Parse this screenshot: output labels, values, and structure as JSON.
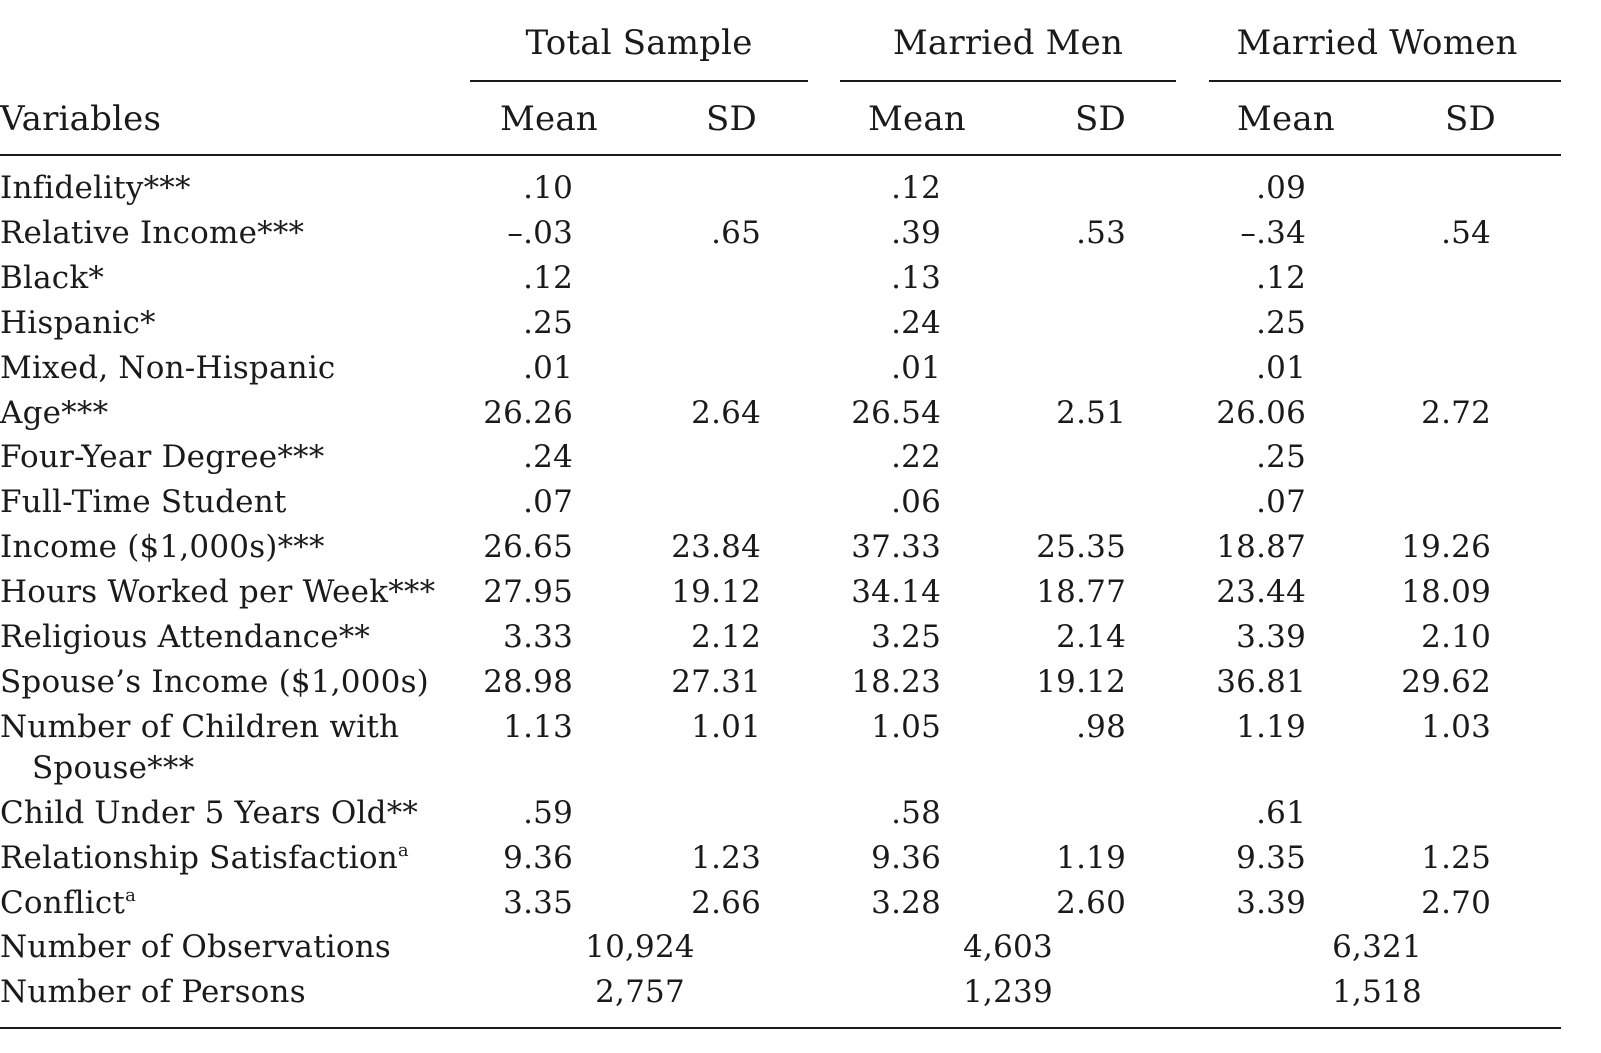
{
  "table": {
    "stub_header": "Variables",
    "groups": [
      {
        "label": "Total Sample",
        "cols": [
          "Mean",
          "SD"
        ]
      },
      {
        "label": "Married Men",
        "cols": [
          "Mean",
          "SD"
        ]
      },
      {
        "label": "Married Women",
        "cols": [
          "Mean",
          "SD"
        ]
      }
    ],
    "rows": [
      {
        "label": "Infidelity***",
        "values": [
          ".10",
          "",
          ".12",
          "",
          ".09",
          ""
        ]
      },
      {
        "label": "Relative Income***",
        "values": [
          "–.03",
          ".65",
          ".39",
          ".53",
          "–.34",
          ".54"
        ]
      },
      {
        "label": "Black*",
        "values": [
          ".12",
          "",
          ".13",
          "",
          ".12",
          ""
        ]
      },
      {
        "label": "Hispanic*",
        "values": [
          ".25",
          "",
          ".24",
          "",
          ".25",
          ""
        ]
      },
      {
        "label": "Mixed, Non-Hispanic",
        "values": [
          ".01",
          "",
          ".01",
          "",
          ".01",
          ""
        ]
      },
      {
        "label": "Age***",
        "values": [
          "26.26",
          "2.64",
          "26.54",
          "2.51",
          "26.06",
          "2.72"
        ]
      },
      {
        "label": "Four-Year Degree***",
        "values": [
          ".24",
          "",
          ".22",
          "",
          ".25",
          ""
        ]
      },
      {
        "label": "Full-Time Student",
        "values": [
          ".07",
          "",
          ".06",
          "",
          ".07",
          ""
        ]
      },
      {
        "label": "Income ($1,000s)***",
        "values": [
          "26.65",
          "23.84",
          "37.33",
          "25.35",
          "18.87",
          "19.26"
        ]
      },
      {
        "label": "Hours Worked per Week***",
        "values": [
          "27.95",
          "19.12",
          "34.14",
          "18.77",
          "23.44",
          "18.09"
        ]
      },
      {
        "label": "Religious Attendance**",
        "values": [
          "3.33",
          "2.12",
          "3.25",
          "2.14",
          "3.39",
          "2.10"
        ]
      },
      {
        "label": "Spouse’s Income ($1,000s)",
        "values": [
          "28.98",
          "27.31",
          "18.23",
          "19.12",
          "36.81",
          "29.62"
        ]
      },
      {
        "label": "Number of Children with",
        "label2": "Spouse***",
        "values": [
          "1.13",
          "1.01",
          "1.05",
          ".98",
          "1.19",
          "1.03"
        ]
      },
      {
        "label": "Child Under 5 Years Old**",
        "values": [
          ".59",
          "",
          ".58",
          "",
          ".61",
          ""
        ]
      },
      {
        "label": "Relationship Satisfaction",
        "sup": "a",
        "values": [
          "9.36",
          "1.23",
          "9.36",
          "1.19",
          "9.35",
          "1.25"
        ]
      },
      {
        "label": "Conflict",
        "sup": "a",
        "values": [
          "3.35",
          "2.66",
          "3.28",
          "2.60",
          "3.39",
          "2.70"
        ]
      }
    ],
    "summary_rows": [
      {
        "label": "Number of Observations",
        "values": [
          "10,924",
          "4,603",
          "6,321"
        ]
      },
      {
        "label": "Number of Persons",
        "values": [
          "2,757",
          "1,239",
          "1,518"
        ]
      }
    ]
  }
}
